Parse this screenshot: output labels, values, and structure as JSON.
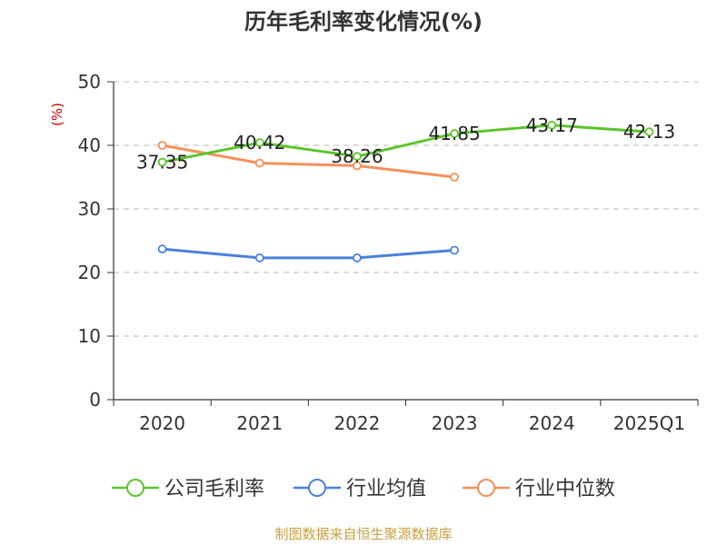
{
  "chart_data": {
    "type": "line",
    "title": "历年毛利率变化情况(%)",
    "ylabel": "(%)",
    "categories": [
      "2020",
      "2021",
      "2022",
      "2023",
      "2024",
      "2025Q1"
    ],
    "ylim": [
      0,
      50
    ],
    "yticks": [
      0,
      10,
      20,
      30,
      40,
      50
    ],
    "grid": true,
    "legend_position": "bottom",
    "series": [
      {
        "name": "公司毛利率",
        "color": "#5cc42b",
        "values": [
          37.35,
          40.42,
          38.26,
          41.85,
          43.17,
          42.13
        ],
        "labels": [
          "37.35",
          "40.42",
          "38.26",
          "41.85",
          "43.17",
          "42.13"
        ]
      },
      {
        "name": "行业均值",
        "color": "#4b80dc",
        "values": [
          23.7,
          22.3,
          22.3,
          23.5,
          null,
          null
        ]
      },
      {
        "name": "行业中位数",
        "color": "#f5905a",
        "values": [
          40.0,
          37.2,
          36.8,
          35.0,
          null,
          null
        ]
      }
    ]
  },
  "unit_color": "#cc0000",
  "source_text": "制图数据来自恒生聚源数据库",
  "source_color": "#c8a040"
}
